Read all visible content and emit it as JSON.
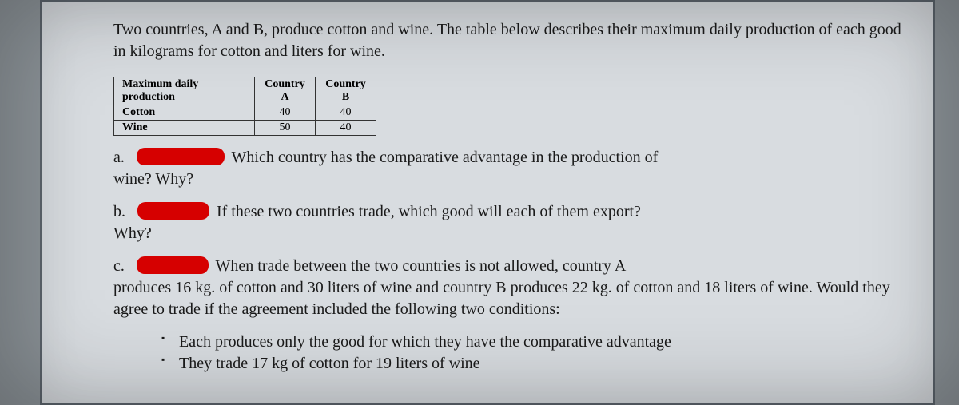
{
  "intro": "Two countries, A and B, produce cotton and wine. The table below describes their maximum daily production of each good in kilograms for cotton and liters for wine.",
  "table": {
    "header": [
      "Maximum daily production",
      "Country A",
      "Country B"
    ],
    "rows": [
      {
        "label": "Cotton",
        "a": "40",
        "b": "40"
      },
      {
        "label": "Wine",
        "a": "50",
        "b": "40"
      }
    ]
  },
  "qa": {
    "label": "a.",
    "line1_after": "Which country has the comparative advantage in the production of",
    "line2": "wine? Why?"
  },
  "qb": {
    "label": "b.",
    "line1_after": "If these two countries trade, which good will each of them export?",
    "line2": "Why?"
  },
  "qc": {
    "label": "c.",
    "line1_after": "When trade between the two countries is not allowed, country A",
    "rest": "produces 16 kg. of cotton and 30 liters of wine and country B produces 22 kg. of cotton and 18 liters of wine. Would they agree to trade if the agreement included the following two conditions:"
  },
  "bullets": [
    "Each produces only the good for which they have the comparative advantage",
    "They trade 17 kg of cotton for 19 liters of wine"
  ]
}
